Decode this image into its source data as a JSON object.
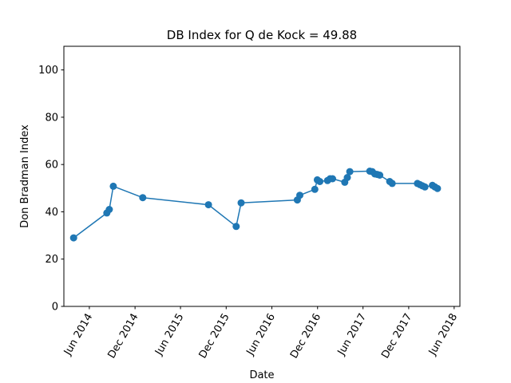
{
  "chart_data": {
    "type": "line",
    "title": "DB Index for Q de Kock = 49.88",
    "xlabel": "Date",
    "ylabel": "Don Bradman Index",
    "ylim": [
      0,
      110
    ],
    "xlim": [
      "2014-02-19",
      "2018-06-24"
    ],
    "yticks": [
      0,
      20,
      40,
      60,
      80,
      100
    ],
    "xticks": [
      {
        "date": "2014-06-01",
        "label": "Jun 2014"
      },
      {
        "date": "2014-12-01",
        "label": "Dec 2014"
      },
      {
        "date": "2015-06-01",
        "label": "Jun 2015"
      },
      {
        "date": "2015-12-01",
        "label": "Dec 2015"
      },
      {
        "date": "2016-06-01",
        "label": "Jun 2016"
      },
      {
        "date": "2016-12-01",
        "label": "Dec 2016"
      },
      {
        "date": "2017-06-01",
        "label": "Jun 2017"
      },
      {
        "date": "2017-12-01",
        "label": "Dec 2017"
      },
      {
        "date": "2018-06-01",
        "label": "Jun 2018"
      }
    ],
    "grid": false,
    "series": [
      {
        "color": "#1f77b4",
        "x": [
          "2014-03-30",
          "2014-08-10",
          "2014-08-20",
          "2014-09-05",
          "2015-01-01",
          "2015-09-21",
          "2016-01-10",
          "2016-01-30",
          "2016-09-11",
          "2016-09-21",
          "2016-11-20",
          "2016-11-30",
          "2016-12-10",
          "2017-01-10",
          "2017-01-20",
          "2017-01-30",
          "2017-03-20",
          "2017-03-30",
          "2017-04-09",
          "2017-06-28",
          "2017-07-08",
          "2017-07-18",
          "2017-07-28",
          "2017-08-07",
          "2017-09-16",
          "2017-09-26",
          "2018-01-05",
          "2018-01-15",
          "2018-01-25",
          "2018-02-04",
          "2018-03-06",
          "2018-03-16",
          "2018-03-26"
        ],
        "y": [
          29.0,
          39.5,
          41.0,
          50.8,
          46.0,
          43.0,
          33.8,
          43.8,
          45.0,
          47.0,
          49.5,
          53.5,
          52.8,
          53.2,
          54.0,
          54.0,
          52.5,
          54.5,
          57.0,
          57.2,
          57.0,
          56.0,
          55.8,
          55.5,
          52.8,
          52.0,
          52.0,
          51.5,
          51.0,
          50.5,
          51.2,
          50.5,
          49.88
        ]
      }
    ]
  }
}
